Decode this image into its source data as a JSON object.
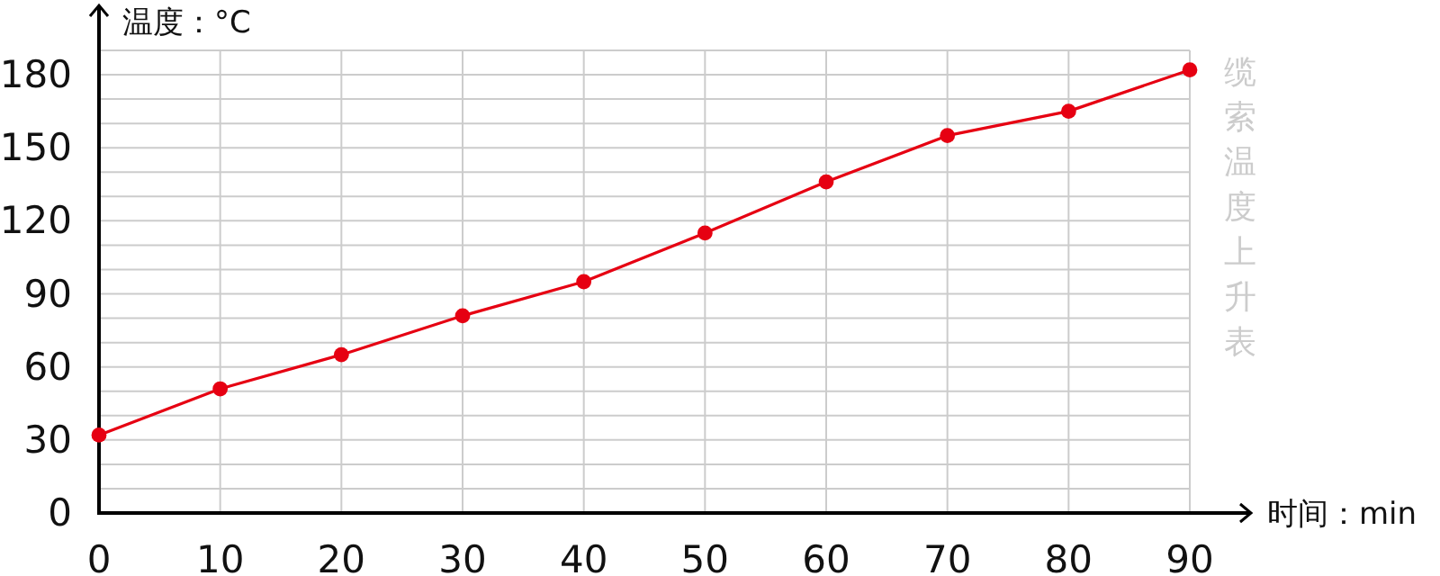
{
  "chart_data": {
    "type": "line",
    "title": "缆索温度上升表",
    "xlabel": "时间：min",
    "ylabel": "温度：°C",
    "x": [
      0,
      10,
      20,
      30,
      40,
      50,
      60,
      70,
      80,
      90
    ],
    "series": [
      {
        "color": "#e60012",
        "values": [
          32,
          51,
          65,
          81,
          95,
          115,
          136,
          155,
          165,
          182
        ]
      }
    ],
    "xlim": [
      0,
      90
    ],
    "xticks": [
      0,
      10,
      20,
      30,
      40,
      50,
      60,
      70,
      80,
      90
    ],
    "ylim": [
      0,
      190
    ],
    "yticks": [
      0,
      {
        "value": 10,
        "label": null
      },
      {
        "value": 20,
        "label": null
      },
      30,
      {
        "value": 40,
        "label": null
      },
      {
        "value": 50,
        "label": null
      },
      60,
      {
        "value": 70,
        "label": null
      },
      {
        "value": 80,
        "label": null
      },
      90,
      {
        "value": 100,
        "label": null
      },
      {
        "value": 110,
        "label": null
      },
      120,
      {
        "value": 130,
        "label": null
      },
      {
        "value": 140,
        "label": null
      },
      150,
      {
        "value": 160,
        "label": null
      },
      {
        "value": 170,
        "label": null
      },
      180,
      {
        "value": 190,
        "label": null
      }
    ],
    "grid": true,
    "marker": "circle",
    "line_style": "solid"
  }
}
